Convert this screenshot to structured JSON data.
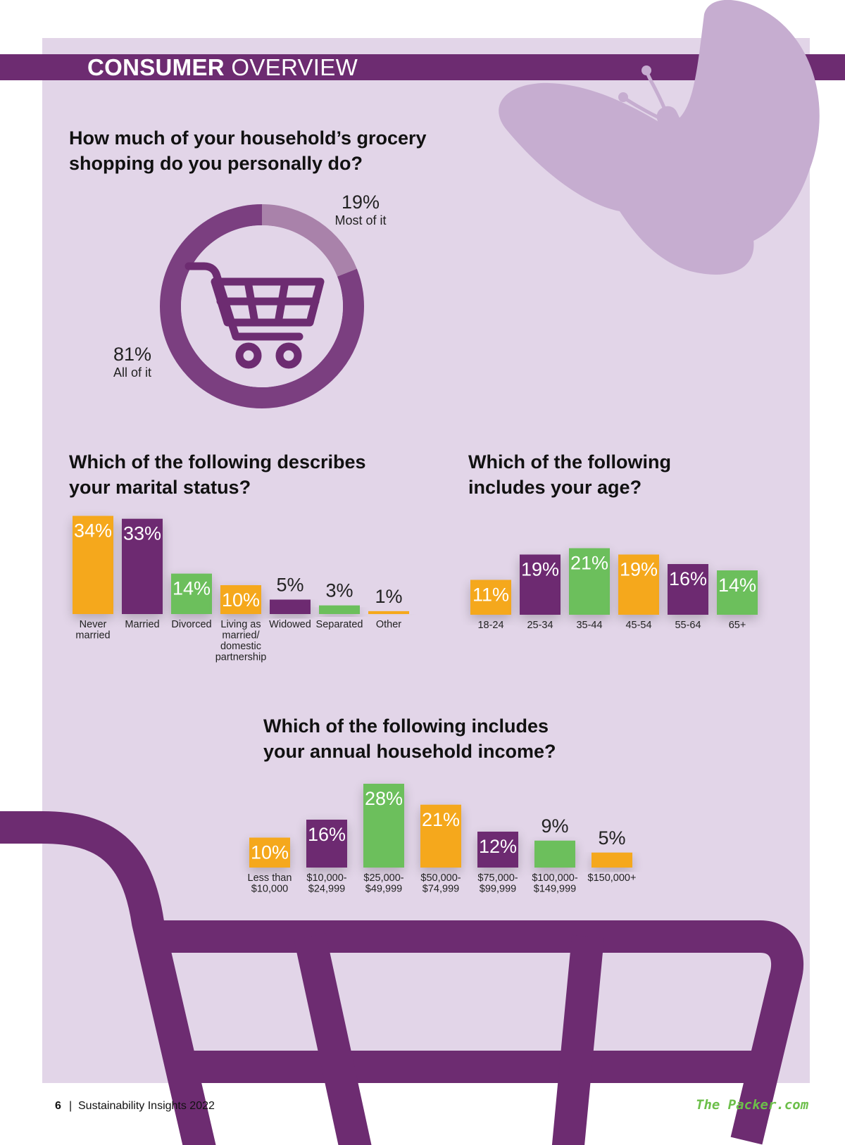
{
  "header": {
    "title_bold": "CONSUMER",
    "title_light": "OVERVIEW"
  },
  "colors": {
    "purple": "#6d2c71",
    "light_purple": "#a982aa",
    "orange": "#f5a81c",
    "green": "#6cbf5c",
    "bg": "#e2d5e8",
    "butterfly": "#c6add0"
  },
  "icons": [
    "butterfly-icon",
    "shopping-cart-icon",
    "cart-background-icon"
  ],
  "chart_data": [
    {
      "type": "pie",
      "title": "How much of your household’s grocery shopping do you personally do?",
      "title_lines": [
        "How much of your household’s grocery",
        "shopping do you personally do?"
      ],
      "slices": [
        {
          "label": "All of it",
          "value": 81,
          "display": "81%",
          "color": "#7b3f80"
        },
        {
          "label": "Most of it",
          "value": 19,
          "display": "19%",
          "color": "#a982aa"
        }
      ]
    },
    {
      "type": "bar",
      "title": "Which of the following describes your marital status?",
      "title_lines": [
        "Which of the following describes",
        "your marital status?"
      ],
      "categories": [
        [
          "Never",
          "married"
        ],
        [
          "Married"
        ],
        [
          "Divorced"
        ],
        [
          "Living as",
          "married/",
          "domestic",
          "partnership"
        ],
        [
          "Widowed"
        ],
        [
          "Separated"
        ],
        [
          "Other"
        ]
      ],
      "values": [
        34,
        33,
        14,
        10,
        5,
        3,
        1
      ],
      "labels": [
        "34%",
        "33%",
        "14%",
        "10%",
        "5%",
        "3%",
        "1%"
      ],
      "colors": [
        "#f5a81c",
        "#6d2c71",
        "#6cbf5c",
        "#f5a81c",
        "#6d2c71",
        "#6cbf5c",
        "#f5a81c"
      ]
    },
    {
      "type": "bar",
      "title": "Which of the following includes your age?",
      "title_lines": [
        "Which of the following",
        "includes your age?"
      ],
      "categories": [
        [
          "18-24"
        ],
        [
          "25-34"
        ],
        [
          "35-44"
        ],
        [
          "45-54"
        ],
        [
          "55-64"
        ],
        [
          "65+"
        ]
      ],
      "values": [
        11,
        19,
        21,
        19,
        16,
        14
      ],
      "labels": [
        "11%",
        "19%",
        "21%",
        "19%",
        "16%",
        "14%"
      ],
      "colors": [
        "#f5a81c",
        "#6d2c71",
        "#6cbf5c",
        "#f5a81c",
        "#6d2c71",
        "#6cbf5c"
      ]
    },
    {
      "type": "bar",
      "title": "Which of the following includes your annual household income?",
      "title_lines": [
        "Which of the following includes",
        "your annual household income?"
      ],
      "categories": [
        [
          "Less than",
          "$10,000"
        ],
        [
          "$10,000-",
          "$24,999"
        ],
        [
          "$25,000-",
          "$49,999"
        ],
        [
          "$50,000-",
          "$74,999"
        ],
        [
          "$75,000-",
          "$99,999"
        ],
        [
          "$100,000-",
          "$149,999"
        ],
        [
          "$150,000+"
        ]
      ],
      "values": [
        10,
        16,
        28,
        21,
        12,
        9,
        5
      ],
      "labels": [
        "10%",
        "16%",
        "28%",
        "21%",
        "12%",
        "9%",
        "5%"
      ],
      "colors": [
        "#f5a81c",
        "#6d2c71",
        "#6cbf5c",
        "#f5a81c",
        "#6d2c71",
        "#6cbf5c",
        "#f5a81c"
      ]
    }
  ],
  "footer": {
    "page": "6",
    "separator": "|",
    "publication": "Sustainability Insights 2022",
    "brand": "The Packer.com"
  }
}
